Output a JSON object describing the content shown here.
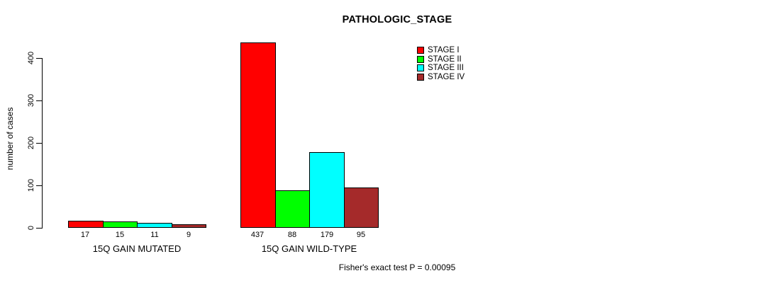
{
  "page": {
    "background": "#ffffff"
  },
  "chart_data": {
    "type": "bar",
    "grouped": true,
    "title": "PATHOLOGIC_STAGE",
    "xlabel": "",
    "ylabel": "number of cases",
    "categories": [
      "15Q GAIN MUTATED",
      "15Q GAIN WILD-TYPE"
    ],
    "series": [
      {
        "name": "STAGE I",
        "color": "#ff0000",
        "values": [
          17,
          437
        ]
      },
      {
        "name": "STAGE II",
        "color": "#00ff00",
        "values": [
          15,
          88
        ]
      },
      {
        "name": "STAGE III",
        "color": "#00ffff",
        "values": [
          11,
          179
        ]
      },
      {
        "name": "STAGE IV",
        "color": "#a52a2a",
        "values": [
          9,
          95
        ]
      }
    ],
    "bar_value_labels": [
      [
        "17",
        "15",
        "11",
        "9"
      ],
      [
        "437",
        "88",
        "179",
        "95"
      ]
    ],
    "yticks": [
      "0",
      "100",
      "200",
      "300",
      "400"
    ],
    "ylim": [
      0,
      440
    ],
    "grid": false,
    "legend_position": "top-right",
    "legend_entries": [
      "STAGE I",
      "STAGE II",
      "STAGE III",
      "STAGE IV"
    ],
    "annotation": "Fisher's exact test P = 0.00095",
    "axis_color": "#000000",
    "bar_border_color": "#000000"
  }
}
